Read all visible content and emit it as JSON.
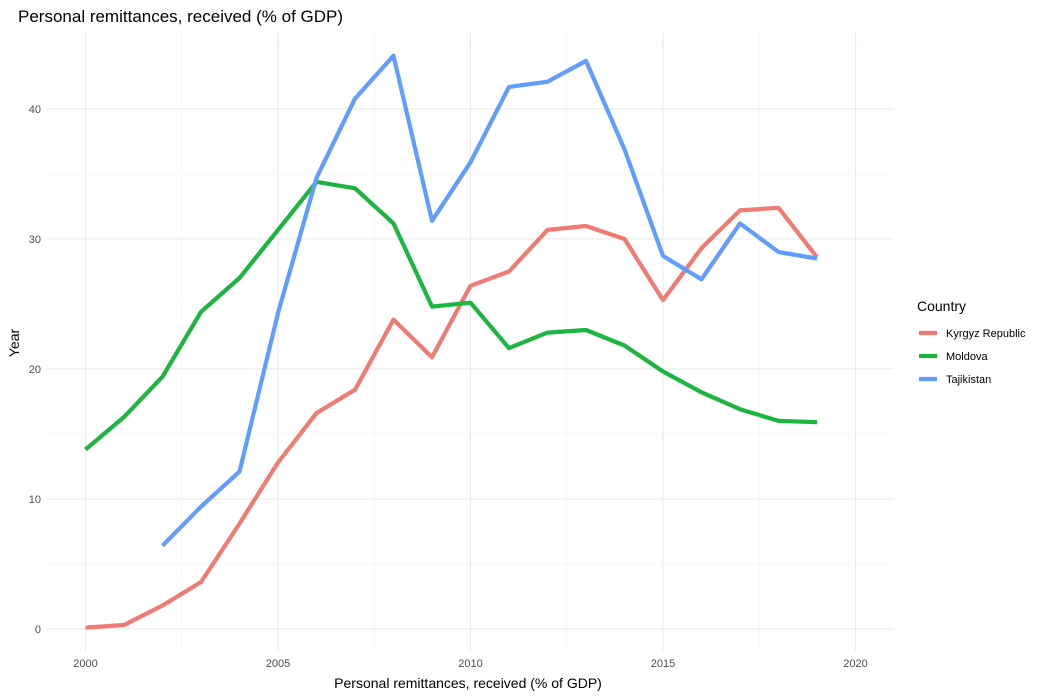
{
  "chart_data": {
    "type": "line",
    "title": "Personal remittances, received (% of GDP)",
    "xlabel": "Personal remittances, received (% of GDP)",
    "ylabel": "Year",
    "xlim": [
      1999.0,
      2021.0
    ],
    "ylim": [
      -1.7,
      46.0
    ],
    "x_ticks": [
      2000,
      2005,
      2010,
      2015,
      2020
    ],
    "y_ticks": [
      0,
      10,
      20,
      30,
      40
    ],
    "grid": true,
    "legend": {
      "title": "Country",
      "placement": "right"
    },
    "series": [
      {
        "name": "Kyrgyz Republic",
        "color": "#F07B73",
        "x": [
          2000,
          2001,
          2002,
          2003,
          2004,
          2005,
          2006,
          2007,
          2008,
          2009,
          2010,
          2011,
          2012,
          2013,
          2014,
          2015,
          2016,
          2017,
          2018,
          2019
        ],
        "y": [
          0.1,
          0.3,
          1.8,
          3.6,
          8.1,
          12.8,
          16.6,
          18.4,
          23.8,
          20.9,
          26.4,
          27.5,
          30.7,
          31.0,
          30.0,
          25.3,
          29.3,
          32.2,
          32.4,
          28.6
        ]
      },
      {
        "name": "Moldova",
        "color": "#1CB540",
        "x": [
          2000,
          2001,
          2002,
          2003,
          2004,
          2005,
          2006,
          2007,
          2008,
          2009,
          2010,
          2011,
          2012,
          2013,
          2014,
          2015,
          2016,
          2017,
          2018,
          2019
        ],
        "y": [
          13.8,
          16.3,
          19.4,
          24.4,
          27.0,
          30.7,
          34.4,
          33.9,
          31.2,
          24.8,
          25.1,
          21.6,
          22.8,
          23.0,
          21.8,
          19.8,
          18.2,
          16.9,
          16.0,
          15.9
        ]
      },
      {
        "name": "Tajikistan",
        "color": "#619CFF",
        "x": [
          2002,
          2003,
          2004,
          2005,
          2006,
          2007,
          2008,
          2009,
          2010,
          2011,
          2012,
          2013,
          2014,
          2015,
          2016,
          2017,
          2018,
          2019
        ],
        "y": [
          6.4,
          9.4,
          12.1,
          24.3,
          34.7,
          40.8,
          44.1,
          31.4,
          35.9,
          41.7,
          42.1,
          43.7,
          36.9,
          28.7,
          26.9,
          31.2,
          29.0,
          28.5
        ]
      }
    ]
  }
}
